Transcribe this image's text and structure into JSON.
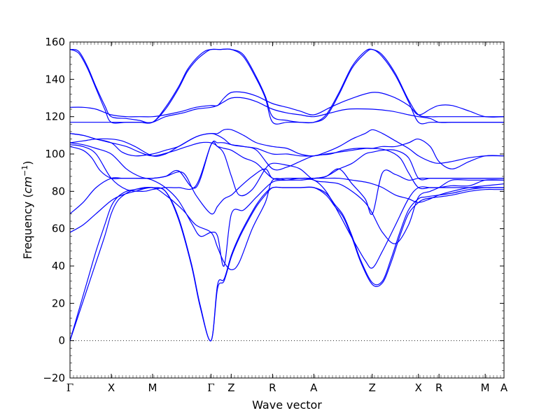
{
  "chart_data": {
    "type": "line",
    "title": "",
    "xlabel": "Wave vector",
    "ylabel": "Frequency",
    "ylabel_unit_base": "cm",
    "ylabel_unit_exp": "−1",
    "ylim": [
      -20,
      160
    ],
    "yticks": [
      -20,
      0,
      20,
      40,
      60,
      80,
      100,
      120,
      140,
      160
    ],
    "xlim": [
      0,
      1
    ],
    "xticks": [
      {
        "pos": 0.0,
        "label": "Γ"
      },
      {
        "pos": 0.0952,
        "label": "X"
      },
      {
        "pos": 0.1903,
        "label": "M"
      },
      {
        "pos": 0.3249,
        "label": "Γ"
      },
      {
        "pos": 0.3715,
        "label": "Z"
      },
      {
        "pos": 0.4667,
        "label": "R"
      },
      {
        "pos": 0.5618,
        "label": "A"
      },
      {
        "pos": 0.6964,
        "label": "Z"
      },
      {
        "pos": 0.8028,
        "label": "X"
      },
      {
        "pos": 0.8503,
        "label": "R"
      },
      {
        "pos": 0.9567,
        "label": "M"
      },
      {
        "pos": 1.0,
        "label": "A"
      }
    ],
    "zero_line": true,
    "line_color": "#0000ff",
    "series": [
      {
        "x": [
          0,
          0.02,
          0.04,
          0.06,
          0.08,
          0.095,
          0.11,
          0.13,
          0.15,
          0.17,
          0.19,
          0.22,
          0.25,
          0.28,
          0.3,
          0.325,
          0.34,
          0.355,
          0.372,
          0.39,
          0.41,
          0.43,
          0.45,
          0.467,
          0.49,
          0.51,
          0.53,
          0.562,
          0.59,
          0.61,
          0.63,
          0.65,
          0.67,
          0.697,
          0.72,
          0.74,
          0.76,
          0.78,
          0.803,
          0.82,
          0.85,
          0.88,
          0.92,
          0.957,
          0.98,
          1.0
        ],
        "y": [
          0,
          14,
          28,
          42,
          56,
          68,
          75,
          79,
          81,
          81.5,
          82,
          80,
          65,
          40,
          18,
          0,
          28,
          32,
          45,
          55,
          64,
          72,
          78,
          82,
          82,
          82,
          82,
          82,
          78,
          72,
          66,
          55,
          42,
          30,
          31,
          42,
          56,
          68,
          74,
          76,
          77,
          78,
          80,
          81,
          81,
          81
        ]
      },
      {
        "x": [
          0,
          0.02,
          0.04,
          0.06,
          0.08,
          0.095,
          0.11,
          0.13,
          0.15,
          0.17,
          0.19,
          0.22,
          0.25,
          0.28,
          0.3,
          0.325,
          0.34,
          0.355,
          0.372,
          0.39,
          0.41,
          0.43,
          0.45,
          0.467,
          0.49,
          0.51,
          0.53,
          0.562,
          0.59,
          0.61,
          0.63,
          0.65,
          0.67,
          0.697,
          0.72,
          0.74,
          0.76,
          0.78,
          0.803,
          0.82,
          0.85,
          0.88,
          0.92,
          0.957,
          0.98,
          1.0
        ],
        "y": [
          0,
          16,
          32,
          48,
          62,
          72,
          77,
          80,
          81,
          82,
          82,
          80,
          66,
          41,
          19,
          0,
          30,
          33,
          46,
          56,
          65,
          73,
          79,
          82,
          82,
          82,
          82,
          82,
          79,
          73,
          67,
          56,
          43,
          31,
          32,
          44,
          58,
          70,
          76,
          77,
          78,
          79,
          81,
          82,
          82,
          82
        ]
      },
      {
        "x": [
          0,
          0.03,
          0.06,
          0.095,
          0.12,
          0.15,
          0.19,
          0.22,
          0.26,
          0.29,
          0.325,
          0.34,
          0.355,
          0.372,
          0.39,
          0.42,
          0.45,
          0.467,
          0.5,
          0.53,
          0.562,
          0.59,
          0.62,
          0.65,
          0.68,
          0.697,
          0.72,
          0.75,
          0.78,
          0.803,
          0.83,
          0.85,
          0.88,
          0.92,
          0.957,
          1.0
        ],
        "y": [
          58,
          62,
          68,
          75,
          78,
          80,
          82,
          78,
          70,
          62,
          58,
          50,
          42,
          38,
          42,
          60,
          74,
          86,
          86,
          86,
          86,
          80,
          68,
          55,
          43,
          39,
          48,
          62,
          76,
          82,
          82,
          82,
          83,
          83,
          86,
          86
        ]
      },
      {
        "x": [
          0,
          0.03,
          0.06,
          0.095,
          0.12,
          0.15,
          0.19,
          0.22,
          0.26,
          0.29,
          0.325,
          0.34,
          0.355,
          0.372,
          0.39,
          0.42,
          0.45,
          0.467,
          0.5,
          0.53,
          0.562,
          0.59,
          0.62,
          0.65,
          0.68,
          0.697,
          0.72,
          0.75,
          0.78,
          0.803,
          0.83,
          0.85,
          0.88,
          0.92,
          0.957,
          1.0
        ],
        "y": [
          68,
          74,
          82,
          87,
          87,
          87,
          87,
          88,
          90,
          78,
          68,
          72,
          76,
          78,
          82,
          88,
          92,
          87,
          87,
          87,
          87,
          88,
          92,
          84,
          76,
          68,
          90,
          89,
          86,
          87,
          87,
          87,
          87,
          87,
          87,
          87
        ]
      },
      {
        "x": [
          0,
          0.03,
          0.05,
          0.07,
          0.095,
          0.12,
          0.15,
          0.19,
          0.22,
          0.25,
          0.29,
          0.325,
          0.34,
          0.355,
          0.372,
          0.4,
          0.43,
          0.467,
          0.5,
          0.53,
          0.562,
          0.59,
          0.62,
          0.65,
          0.68,
          0.697,
          0.72,
          0.75,
          0.78,
          0.803,
          0.83,
          0.85,
          0.88,
          0.92,
          0.957,
          1.0
        ],
        "y": [
          104,
          102,
          98,
          91,
          87,
          87,
          87,
          87,
          88,
          91,
          82,
          105,
          104,
          103,
          102,
          98,
          95,
          87,
          87,
          87,
          87,
          88,
          92,
          95,
          100,
          101,
          102,
          102,
          98,
          87,
          87,
          87,
          87,
          87,
          87,
          87
        ]
      },
      {
        "x": [
          0,
          0.03,
          0.06,
          0.095,
          0.13,
          0.17,
          0.19,
          0.22,
          0.25,
          0.29,
          0.325,
          0.34,
          0.355,
          0.372,
          0.4,
          0.43,
          0.467,
          0.5,
          0.53,
          0.562,
          0.6,
          0.63,
          0.66,
          0.697,
          0.73,
          0.76,
          0.78,
          0.803,
          0.83,
          0.85,
          0.88,
          0.92,
          0.957,
          1.0
        ],
        "y": [
          105,
          104,
          100,
          87,
          81,
          80,
          81,
          82,
          82,
          83,
          105,
          106,
          106,
          105,
          104,
          102,
          92,
          93,
          96,
          99,
          100,
          102,
          103,
          103,
          102,
          98,
          90,
          82,
          82,
          82,
          82,
          82,
          82,
          82
        ]
      },
      {
        "x": [
          0,
          0.03,
          0.06,
          0.095,
          0.13,
          0.16,
          0.19,
          0.22,
          0.25,
          0.28,
          0.3,
          0.325,
          0.34,
          0.355,
          0.372,
          0.4,
          0.43,
          0.467,
          0.5,
          0.53,
          0.562,
          0.59,
          0.62,
          0.65,
          0.68,
          0.697,
          0.72,
          0.75,
          0.78,
          0.803,
          0.83,
          0.85,
          0.88,
          0.92,
          0.957,
          1.0
        ],
        "y": [
          106,
          105,
          103,
          100,
          92,
          88,
          86,
          82,
          75,
          63,
          56,
          58,
          56,
          40,
          68,
          70,
          77,
          85,
          86,
          87,
          87,
          87,
          87,
          86,
          85,
          84,
          82,
          78,
          76,
          74,
          76,
          78,
          80,
          82,
          83,
          84
        ]
      },
      {
        "x": [
          0,
          0.03,
          0.06,
          0.095,
          0.13,
          0.16,
          0.19,
          0.23,
          0.27,
          0.3,
          0.325,
          0.34,
          0.355,
          0.372,
          0.39,
          0.42,
          0.45,
          0.467,
          0.5,
          0.53,
          0.562,
          0.59,
          0.62,
          0.65,
          0.68,
          0.697,
          0.72,
          0.75,
          0.78,
          0.803,
          0.83,
          0.85,
          0.88,
          0.92,
          0.957,
          1.0
        ],
        "y": [
          111,
          110,
          108,
          106,
          104,
          101,
          99,
          101,
          104,
          106,
          106,
          104,
          100,
          88,
          78,
          81,
          92,
          95,
          94,
          92,
          86,
          85,
          84,
          80,
          74,
          68,
          58,
          52,
          62,
          77,
          80,
          82,
          86,
          86,
          86,
          86
        ]
      },
      {
        "x": [
          0,
          0.03,
          0.06,
          0.095,
          0.12,
          0.15,
          0.19,
          0.22,
          0.25,
          0.28,
          0.3,
          0.325,
          0.34,
          0.355,
          0.372,
          0.4,
          0.43,
          0.467,
          0.5,
          0.53,
          0.562,
          0.59,
          0.62,
          0.65,
          0.68,
          0.697,
          0.72,
          0.75,
          0.78,
          0.803,
          0.83,
          0.85,
          0.88,
          0.92,
          0.957,
          1.0
        ],
        "y": [
          106,
          107,
          108,
          108,
          107,
          104,
          99,
          100,
          104,
          108,
          110,
          111,
          110,
          108,
          105,
          104,
          103,
          100,
          100,
          99,
          99,
          100,
          101,
          102,
          103,
          103,
          104,
          104,
          106,
          108,
          104,
          96,
          92,
          96,
          99,
          99
        ]
      },
      {
        "x": [
          0,
          0.03,
          0.06,
          0.095,
          0.12,
          0.15,
          0.19,
          0.22,
          0.25,
          0.28,
          0.3,
          0.325,
          0.34,
          0.355,
          0.372,
          0.4,
          0.43,
          0.467,
          0.5,
          0.53,
          0.562,
          0.59,
          0.62,
          0.65,
          0.68,
          0.697,
          0.72,
          0.75,
          0.78,
          0.803,
          0.83,
          0.85,
          0.88,
          0.92,
          0.957,
          1.0
        ],
        "y": [
          111,
          110,
          108,
          106,
          101,
          99,
          100,
          102,
          104,
          108,
          110,
          111,
          111,
          113,
          113,
          110,
          106,
          104,
          103,
          100,
          99,
          101,
          104,
          108,
          111,
          113,
          111,
          107,
          103,
          99,
          96,
          95,
          96,
          98,
          99,
          99
        ]
      },
      {
        "x": [
          0,
          0.03,
          0.06,
          0.095,
          0.13,
          0.16,
          0.19,
          0.22,
          0.26,
          0.29,
          0.325,
          0.34,
          0.355,
          0.372,
          0.4,
          0.43,
          0.467,
          0.5,
          0.53,
          0.562,
          0.6,
          0.64,
          0.697,
          0.74,
          0.78,
          0.803,
          0.83,
          0.85,
          0.88,
          0.92,
          0.957,
          1.0
        ],
        "y": [
          117,
          117,
          117,
          117,
          117,
          117,
          117,
          120,
          122,
          124,
          125,
          126,
          128,
          130,
          130,
          128,
          124,
          122,
          121,
          120,
          122,
          124,
          124,
          123,
          121,
          120,
          119,
          117,
          117,
          117,
          117,
          117
        ]
      },
      {
        "x": [
          0,
          0.03,
          0.06,
          0.095,
          0.13,
          0.16,
          0.19,
          0.22,
          0.26,
          0.29,
          0.325,
          0.34,
          0.355,
          0.372,
          0.4,
          0.43,
          0.467,
          0.5,
          0.53,
          0.562,
          0.6,
          0.64,
          0.697,
          0.74,
          0.78,
          0.803,
          0.83,
          0.85,
          0.88,
          0.92,
          0.957,
          1.0
        ],
        "y": [
          125,
          125,
          124,
          121,
          120,
          120,
          120,
          121,
          123,
          125,
          126,
          126,
          130,
          133,
          133,
          131,
          127,
          125,
          123,
          121,
          125,
          129,
          133,
          131,
          126,
          121,
          124,
          126,
          126,
          123,
          120,
          120
        ]
      },
      {
        "x": [
          0,
          0.02,
          0.04,
          0.06,
          0.08,
          0.095,
          0.13,
          0.16,
          0.19,
          0.22,
          0.25,
          0.27,
          0.29,
          0.31,
          0.325,
          0.345,
          0.372,
          0.4,
          0.43,
          0.45,
          0.467,
          0.5,
          0.53,
          0.562,
          0.59,
          0.62,
          0.65,
          0.68,
          0.697,
          0.72,
          0.75,
          0.78,
          0.803,
          0.83,
          0.85,
          0.88,
          0.92,
          0.957,
          1.0
        ],
        "y": [
          156,
          154,
          146,
          135,
          124,
          117,
          117,
          117,
          117,
          124,
          135,
          144,
          150,
          154,
          156,
          156,
          156,
          152,
          140,
          130,
          117,
          117,
          117,
          117,
          120,
          132,
          146,
          154,
          156,
          152,
          142,
          128,
          117,
          117,
          117,
          117,
          117,
          117,
          117
        ]
      },
      {
        "x": [
          0,
          0.02,
          0.04,
          0.06,
          0.08,
          0.095,
          0.13,
          0.16,
          0.19,
          0.22,
          0.25,
          0.27,
          0.29,
          0.31,
          0.325,
          0.345,
          0.372,
          0.4,
          0.43,
          0.45,
          0.467,
          0.5,
          0.53,
          0.562,
          0.59,
          0.62,
          0.65,
          0.68,
          0.697,
          0.72,
          0.75,
          0.78,
          0.803,
          0.83,
          0.85,
          0.88,
          0.92,
          0.957,
          1.0
        ],
        "y": [
          156,
          155,
          147,
          136,
          126,
          120,
          119,
          118,
          117,
          125,
          136,
          145,
          151,
          155,
          156,
          156,
          156,
          153,
          141,
          131,
          120,
          118,
          117,
          117,
          121,
          133,
          147,
          155,
          156,
          153,
          143,
          129,
          121,
          120,
          120,
          120,
          120,
          120,
          120
        ]
      }
    ]
  }
}
